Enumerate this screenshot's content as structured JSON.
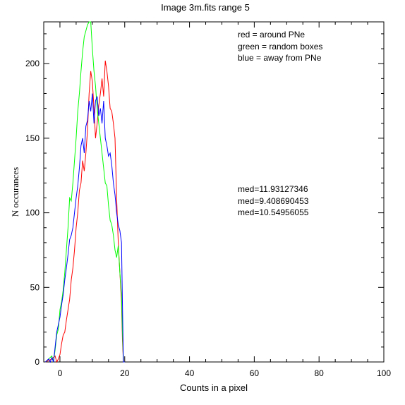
{
  "chart_data": {
    "type": "line",
    "title": "Image 3m.fits   range 5",
    "xlabel": "Counts in a pixel",
    "ylabel": "N occurances",
    "xlim": [
      -5,
      100
    ],
    "ylim": [
      0,
      228
    ],
    "xticks": [
      0,
      20,
      40,
      60,
      80,
      100
    ],
    "yticks": [
      0,
      50,
      100,
      150,
      200
    ],
    "grid": false,
    "legend_position": "top-right",
    "series": [
      {
        "name": "red = around PNe",
        "color": "#ff0000",
        "x": [
          -4.5,
          -3.5,
          -2.5,
          -1.5,
          -1,
          -0.5,
          0,
          0.5,
          1,
          1.5,
          2,
          2.5,
          3,
          3.5,
          4,
          4.5,
          5,
          5.5,
          6,
          6.5,
          7,
          7.5,
          8,
          8.5,
          9,
          9.5,
          10,
          10.5,
          11,
          11.5,
          12,
          12.5,
          13,
          13.5,
          14,
          14.5,
          15,
          15.5,
          16,
          16.5,
          17,
          17.5,
          18,
          18.5,
          19,
          19.3,
          19.6,
          20
        ],
        "y": [
          0,
          1,
          2,
          4,
          0,
          2,
          5,
          12,
          18,
          20,
          28,
          35,
          42,
          55,
          63,
          75,
          90,
          100,
          115,
          120,
          135,
          128,
          140,
          155,
          180,
          195,
          188,
          170,
          150,
          160,
          172,
          180,
          190,
          178,
          202,
          195,
          185,
          170,
          168,
          160,
          150,
          110,
          80,
          60,
          40,
          15,
          0,
          0
        ]
      },
      {
        "name": "green = random boxes",
        "color": "#00ff00",
        "x": [
          -4.5,
          -3.5,
          -2.5,
          -2,
          -1.5,
          -1,
          -0.5,
          0,
          0.5,
          1,
          1.5,
          2,
          2.5,
          3,
          3.5,
          4,
          4.5,
          5,
          5.5,
          6,
          6.5,
          7,
          7.5,
          8,
          8.5,
          9,
          9.5,
          10,
          10.5,
          11,
          11.5,
          12,
          12.5,
          13,
          13.5,
          14,
          14.5,
          15,
          15.5,
          16,
          16.5,
          17,
          17.5,
          18,
          18.5,
          19,
          19.3,
          19.6,
          20
        ],
        "y": [
          0,
          2,
          4,
          0,
          8,
          18,
          22,
          35,
          40,
          48,
          60,
          75,
          90,
          110,
          108,
          120,
          135,
          150,
          168,
          180,
          195,
          208,
          218,
          222,
          226,
          228,
          228,
          210,
          195,
          185,
          170,
          160,
          150,
          140,
          130,
          120,
          118,
          105,
          95,
          92,
          85,
          75,
          70,
          78,
          60,
          45,
          20,
          0,
          0
        ]
      },
      {
        "name": "blue = away from PNe",
        "color": "#0000ff",
        "x": [
          -4.5,
          -3.5,
          -3,
          -2.5,
          -2,
          -1.5,
          -1,
          -0.5,
          0,
          0.5,
          1,
          1.5,
          2,
          2.5,
          3,
          3.5,
          4,
          4.5,
          5,
          5.5,
          6,
          6.5,
          7,
          7.5,
          8,
          8.5,
          9,
          9.5,
          10,
          10.5,
          11,
          11.5,
          12,
          12.5,
          13,
          13.5,
          14,
          14.5,
          15,
          15.5,
          16,
          16.5,
          17,
          17.5,
          18,
          18.5,
          19,
          19.3,
          19.6,
          20
        ],
        "y": [
          0,
          2,
          0,
          3,
          0,
          10,
          20,
          25,
          30,
          38,
          45,
          55,
          63,
          72,
          82,
          85,
          90,
          100,
          110,
          118,
          130,
          145,
          150,
          140,
          158,
          162,
          175,
          168,
          180,
          160,
          175,
          178,
          165,
          170,
          160,
          175,
          150,
          145,
          138,
          140,
          132,
          120,
          112,
          100,
          92,
          88,
          80,
          40,
          0,
          0
        ]
      }
    ],
    "annotations": [
      {
        "text": "med=11.93127346",
        "color": "#ff0000"
      },
      {
        "text": "med=9.408690453",
        "color": "#00ff00"
      },
      {
        "text": "med=10.54956055",
        "color": "#0000ff"
      }
    ]
  }
}
